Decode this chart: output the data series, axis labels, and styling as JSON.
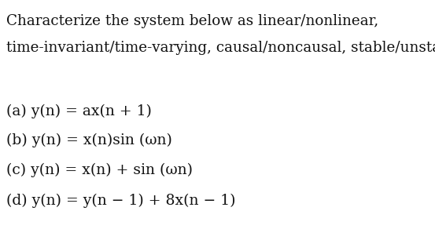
{
  "background_color": "#ffffff",
  "text_color": "#111111",
  "line1": "Characterize the system below as linear/nonlinear,",
  "line2": "time-invariant/time-varying, causal/noncausal, stable/unstable.",
  "eq_a": "(a) y(n) = ax(n + 1)",
  "eq_b": "(b) y(n) = x(n)sin (ωn)",
  "eq_c": "(c) y(n) = x(n) + sin (ωn)",
  "eq_d": "(d) y(n) = y(n − 1) + 8x(n − 1)",
  "font_size_header": 13.2,
  "font_size_eq": 13.5,
  "font_family": "DejaVu Serif",
  "fig_width": 5.53,
  "fig_height": 3.2,
  "dpi": 100
}
